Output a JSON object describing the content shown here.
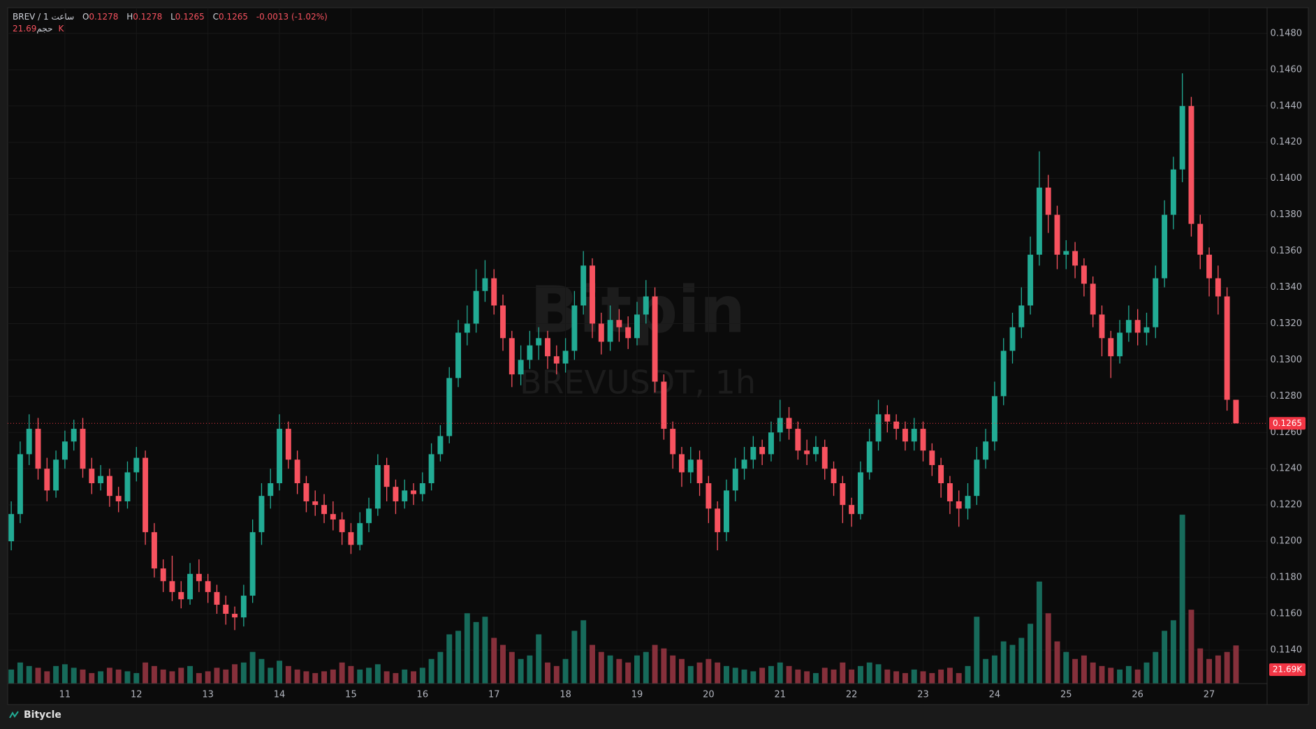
{
  "chart_data": {
    "type": "candlestick",
    "symbol": "BREV / 1 ساعت",
    "open_label": "O",
    "high_label": "H",
    "low_label": "L",
    "close_label": "C",
    "change": "-0.0013 (-1.02%)",
    "watermark": "Bitpin",
    "watermark_symbol": "BREVUSDT, 1h",
    "footer": "Bitycle",
    "up_color": "#22ab94",
    "down_color": "#f7525f",
    "volume_up_color": "#176b5b",
    "volume_down_color": "#86303b",
    "price_line_color": "#f23645",
    "grid": true,
    "xlim": [
      10.2,
      27.81
    ],
    "xticks": [
      11,
      12,
      13,
      14,
      15,
      16,
      17,
      18,
      19,
      20,
      21,
      22,
      23,
      24,
      25,
      26,
      27
    ],
    "ylim": [
      0.11215,
      0.14942
    ],
    "yticks": [
      {
        "value": 0.114,
        "label": "0.1140"
      },
      {
        "value": 0.116,
        "label": "0.1160"
      },
      {
        "value": 0.118,
        "label": "0.1180"
      },
      {
        "value": 0.12,
        "label": "0.1200"
      },
      {
        "value": 0.122,
        "label": "0.1220"
      },
      {
        "value": 0.124,
        "label": "0.1240"
      },
      {
        "value": 0.126,
        "label": "0.1260"
      },
      {
        "value": 0.128,
        "label": "0.1280"
      },
      {
        "value": 0.13,
        "label": "0.1300"
      },
      {
        "value": 0.132,
        "label": "0.1320"
      },
      {
        "value": 0.134,
        "label": "0.1340"
      },
      {
        "value": 0.136,
        "label": "0.1360"
      },
      {
        "value": 0.138,
        "label": "0.1380"
      },
      {
        "value": 0.14,
        "label": "0.1400"
      },
      {
        "value": 0.142,
        "label": "0.1420"
      },
      {
        "value": 0.144,
        "label": "0.1440"
      },
      {
        "value": 0.146,
        "label": "0.1460"
      },
      {
        "value": 0.148,
        "label": "0.1480"
      }
    ],
    "y2lim": [
      0,
      100
    ],
    "x": [
      10.25,
      10.375,
      10.5,
      10.625,
      10.75,
      10.875,
      11,
      11.125,
      11.25,
      11.375,
      11.5,
      11.625,
      11.75,
      11.875,
      12,
      12.125,
      12.25,
      12.375,
      12.5,
      12.625,
      12.75,
      12.875,
      13,
      13.125,
      13.25,
      13.375,
      13.5,
      13.625,
      13.75,
      13.875,
      14,
      14.125,
      14.25,
      14.375,
      14.5,
      14.625,
      14.75,
      14.875,
      15,
      15.125,
      15.25,
      15.375,
      15.5,
      15.625,
      15.75,
      15.875,
      16,
      16.125,
      16.25,
      16.375,
      16.5,
      16.625,
      16.75,
      16.875,
      17,
      17.125,
      17.25,
      17.375,
      17.5,
      17.625,
      17.75,
      17.875,
      18,
      18.125,
      18.25,
      18.375,
      18.5,
      18.625,
      18.75,
      18.875,
      19,
      19.125,
      19.25,
      19.375,
      19.5,
      19.625,
      19.75,
      19.875,
      20,
      20.125,
      20.25,
      20.375,
      20.5,
      20.625,
      20.75,
      20.875,
      21,
      21.125,
      21.25,
      21.375,
      21.5,
      21.625,
      21.75,
      21.875,
      22,
      22.125,
      22.25,
      22.375,
      22.5,
      22.625,
      22.75,
      22.875,
      23,
      23.125,
      23.25,
      23.375,
      23.5,
      23.625,
      23.75,
      23.875,
      24,
      24.125,
      24.25,
      24.375,
      24.5,
      24.625,
      24.75,
      24.875,
      25,
      25.125,
      25.25,
      25.375,
      25.5,
      25.625,
      25.75,
      25.875,
      26,
      26.125,
      26.25,
      26.375,
      26.5,
      26.625,
      26.75,
      26.875,
      27,
      27.125,
      27.25,
      27.375
    ],
    "open": [
      0.12,
      0.1215,
      0.1248,
      0.1262,
      0.124,
      0.1228,
      0.1245,
      0.1255,
      0.1262,
      0.124,
      0.1232,
      0.1236,
      0.1225,
      0.1222,
      0.1238,
      0.1246,
      0.1205,
      0.1185,
      0.1178,
      0.1172,
      0.1168,
      0.1182,
      0.1178,
      0.1172,
      0.1165,
      0.116,
      0.1158,
      0.117,
      0.1205,
      0.1225,
      0.1232,
      0.1262,
      0.1245,
      0.1232,
      0.1222,
      0.122,
      0.1215,
      0.1212,
      0.1205,
      0.1198,
      0.121,
      0.1218,
      0.1242,
      0.123,
      0.1222,
      0.1228,
      0.1226,
      0.1232,
      0.1248,
      0.1258,
      0.129,
      0.1315,
      0.132,
      0.1338,
      0.1345,
      0.133,
      0.1312,
      0.1292,
      0.13,
      0.1308,
      0.1312,
      0.1302,
      0.1298,
      0.1305,
      0.133,
      0.1352,
      0.132,
      0.131,
      0.1322,
      0.1318,
      0.1312,
      0.1325,
      0.1335,
      0.1288,
      0.1262,
      0.1248,
      0.1238,
      0.1245,
      0.1232,
      0.1218,
      0.1205,
      0.1228,
      0.124,
      0.1245,
      0.1252,
      0.1248,
      0.126,
      0.1268,
      0.1262,
      0.125,
      0.1248,
      0.1252,
      0.124,
      0.1232,
      0.122,
      0.1215,
      0.1238,
      0.1255,
      0.127,
      0.1266,
      0.1262,
      0.1255,
      0.1262,
      0.125,
      0.1242,
      0.1232,
      0.1222,
      0.1218,
      0.1225,
      0.1245,
      0.1255,
      0.128,
      0.1305,
      0.1318,
      0.133,
      0.1358,
      0.1395,
      0.138,
      0.1358,
      0.136,
      0.1352,
      0.1342,
      0.1325,
      0.1312,
      0.1302,
      0.1315,
      0.1322,
      0.1315,
      0.1318,
      0.1345,
      0.138,
      0.1405,
      0.144,
      0.1375,
      0.1358,
      0.1345,
      0.1335,
      0.1278
    ],
    "high": [
      0.1222,
      0.1255,
      0.127,
      0.1268,
      0.1246,
      0.125,
      0.1261,
      0.1267,
      0.1268,
      0.1246,
      0.1242,
      0.124,
      0.123,
      0.1244,
      0.1252,
      0.125,
      0.121,
      0.119,
      0.1192,
      0.1178,
      0.1188,
      0.119,
      0.1182,
      0.1176,
      0.117,
      0.1164,
      0.1176,
      0.1212,
      0.1232,
      0.124,
      0.127,
      0.1266,
      0.125,
      0.1236,
      0.1228,
      0.1226,
      0.1222,
      0.1216,
      0.121,
      0.1216,
      0.1224,
      0.1248,
      0.1246,
      0.1234,
      0.1234,
      0.1232,
      0.1238,
      0.1254,
      0.1264,
      0.1296,
      0.1322,
      0.133,
      0.135,
      0.1355,
      0.135,
      0.1336,
      0.1316,
      0.1308,
      0.1316,
      0.1318,
      0.1316,
      0.1308,
      0.1312,
      0.1338,
      0.136,
      0.1356,
      0.1326,
      0.133,
      0.1328,
      0.1324,
      0.1332,
      0.1344,
      0.134,
      0.1292,
      0.1266,
      0.1252,
      0.1252,
      0.125,
      0.1236,
      0.1222,
      0.1234,
      0.1246,
      0.1252,
      0.1258,
      0.1256,
      0.1266,
      0.1278,
      0.1274,
      0.1266,
      0.1256,
      0.1258,
      0.1256,
      0.1244,
      0.1236,
      0.1224,
      0.1244,
      0.1262,
      0.1278,
      0.1275,
      0.127,
      0.1266,
      0.1268,
      0.1266,
      0.1254,
      0.1246,
      0.1236,
      0.1228,
      0.1232,
      0.1252,
      0.1262,
      0.1288,
      0.1312,
      0.1326,
      0.134,
      0.1368,
      0.1415,
      0.1402,
      0.1385,
      0.1366,
      0.1365,
      0.1356,
      0.1346,
      0.133,
      0.1316,
      0.1322,
      0.133,
      0.1328,
      0.1326,
      0.1352,
      0.1388,
      0.1412,
      0.1458,
      0.1445,
      0.138,
      0.1362,
      0.1352,
      0.134,
      0.1278
    ],
    "low": [
      0.1195,
      0.121,
      0.1242,
      0.1234,
      0.1222,
      0.1224,
      0.124,
      0.125,
      0.1235,
      0.1226,
      0.1228,
      0.1219,
      0.1216,
      0.1218,
      0.1233,
      0.1198,
      0.118,
      0.1172,
      0.1167,
      0.1163,
      0.1165,
      0.1172,
      0.1166,
      0.116,
      0.1154,
      0.1151,
      0.1153,
      0.1166,
      0.1198,
      0.1218,
      0.1228,
      0.124,
      0.1226,
      0.1216,
      0.1214,
      0.121,
      0.1206,
      0.1198,
      0.1193,
      0.1195,
      0.1205,
      0.1214,
      0.1222,
      0.1215,
      0.1218,
      0.122,
      0.1222,
      0.1228,
      0.1244,
      0.1254,
      0.1285,
      0.1308,
      0.1315,
      0.1332,
      0.1325,
      0.1305,
      0.1285,
      0.1286,
      0.1295,
      0.13,
      0.1295,
      0.1292,
      0.1293,
      0.13,
      0.1325,
      0.1312,
      0.1303,
      0.1305,
      0.131,
      0.1306,
      0.1308,
      0.132,
      0.1282,
      0.1256,
      0.124,
      0.123,
      0.1232,
      0.1225,
      0.121,
      0.1195,
      0.12,
      0.1222,
      0.1234,
      0.124,
      0.1242,
      0.1244,
      0.1255,
      0.1256,
      0.1245,
      0.1242,
      0.1244,
      0.1234,
      0.1225,
      0.121,
      0.1208,
      0.1212,
      0.1234,
      0.125,
      0.126,
      0.1256,
      0.125,
      0.125,
      0.1244,
      0.1236,
      0.1224,
      0.1215,
      0.1208,
      0.1212,
      0.122,
      0.124,
      0.125,
      0.1275,
      0.1298,
      0.1312,
      0.1325,
      0.1352,
      0.137,
      0.135,
      0.135,
      0.1345,
      0.1335,
      0.1318,
      0.1302,
      0.129,
      0.1298,
      0.131,
      0.1308,
      0.1308,
      0.1312,
      0.134,
      0.1372,
      0.1398,
      0.1368,
      0.135,
      0.1335,
      0.1325,
      0.1272,
      0.1265
    ],
    "close": [
      0.1215,
      0.1248,
      0.1262,
      0.124,
      0.1228,
      0.1245,
      0.1255,
      0.1262,
      0.124,
      0.1232,
      0.1236,
      0.1225,
      0.1222,
      0.1238,
      0.1246,
      0.1205,
      0.1185,
      0.1178,
      0.1172,
      0.1168,
      0.1182,
      0.1178,
      0.1172,
      0.1165,
      0.116,
      0.1158,
      0.117,
      0.1205,
      0.1225,
      0.1232,
      0.1262,
      0.1245,
      0.1232,
      0.1222,
      0.122,
      0.1215,
      0.1212,
      0.1205,
      0.1198,
      0.121,
      0.1218,
      0.1242,
      0.123,
      0.1222,
      0.1228,
      0.1226,
      0.1232,
      0.1248,
      0.1258,
      0.129,
      0.1315,
      0.132,
      0.1338,
      0.1345,
      0.133,
      0.1312,
      0.1292,
      0.13,
      0.1308,
      0.1312,
      0.1302,
      0.1298,
      0.1305,
      0.133,
      0.1352,
      0.132,
      0.131,
      0.1322,
      0.1318,
      0.1312,
      0.1325,
      0.1335,
      0.1288,
      0.1262,
      0.1248,
      0.1238,
      0.1245,
      0.1232,
      0.1218,
      0.1205,
      0.1228,
      0.124,
      0.1245,
      0.1252,
      0.1248,
      0.126,
      0.1268,
      0.1262,
      0.125,
      0.1248,
      0.1252,
      0.124,
      0.1232,
      0.122,
      0.1215,
      0.1238,
      0.1255,
      0.127,
      0.1266,
      0.1262,
      0.1255,
      0.1262,
      0.125,
      0.1242,
      0.1232,
      0.1222,
      0.1218,
      0.1225,
      0.1245,
      0.1255,
      0.128,
      0.1305,
      0.1318,
      0.133,
      0.1358,
      0.1395,
      0.138,
      0.1358,
      0.136,
      0.1352,
      0.1342,
      0.1325,
      0.1312,
      0.1302,
      0.1315,
      0.1322,
      0.1315,
      0.1318,
      0.1345,
      0.138,
      0.1405,
      0.144,
      0.1375,
      0.1358,
      0.1345,
      0.1335,
      0.1278,
      0.1265
    ],
    "volume": {
      "name": "حجم",
      "last_value_label": "21.69K",
      "values": [
        8,
        12,
        10,
        9,
        7,
        10,
        11,
        9,
        8,
        6,
        7,
        9,
        8,
        7,
        6,
        12,
        10,
        8,
        7,
        9,
        10,
        6,
        7,
        9,
        8,
        11,
        12,
        18,
        14,
        9,
        13,
        10,
        8,
        7,
        6,
        7,
        8,
        12,
        10,
        8,
        9,
        11,
        7,
        6,
        8,
        7,
        9,
        14,
        18,
        28,
        30,
        40,
        35,
        38,
        26,
        22,
        18,
        14,
        16,
        28,
        12,
        10,
        14,
        30,
        36,
        22,
        18,
        16,
        14,
        12,
        16,
        18,
        22,
        20,
        16,
        14,
        10,
        12,
        14,
        12,
        10,
        9,
        8,
        7,
        9,
        10,
        12,
        10,
        8,
        7,
        6,
        9,
        8,
        12,
        8,
        10,
        12,
        11,
        8,
        7,
        6,
        8,
        7,
        6,
        8,
        9,
        6,
        10,
        38,
        14,
        16,
        24,
        22,
        26,
        34,
        58,
        40,
        24,
        18,
        14,
        16,
        12,
        10,
        9,
        8,
        10,
        8,
        12,
        18,
        30,
        36,
        96,
        42,
        20,
        14,
        16,
        18,
        21.69
      ]
    }
  }
}
